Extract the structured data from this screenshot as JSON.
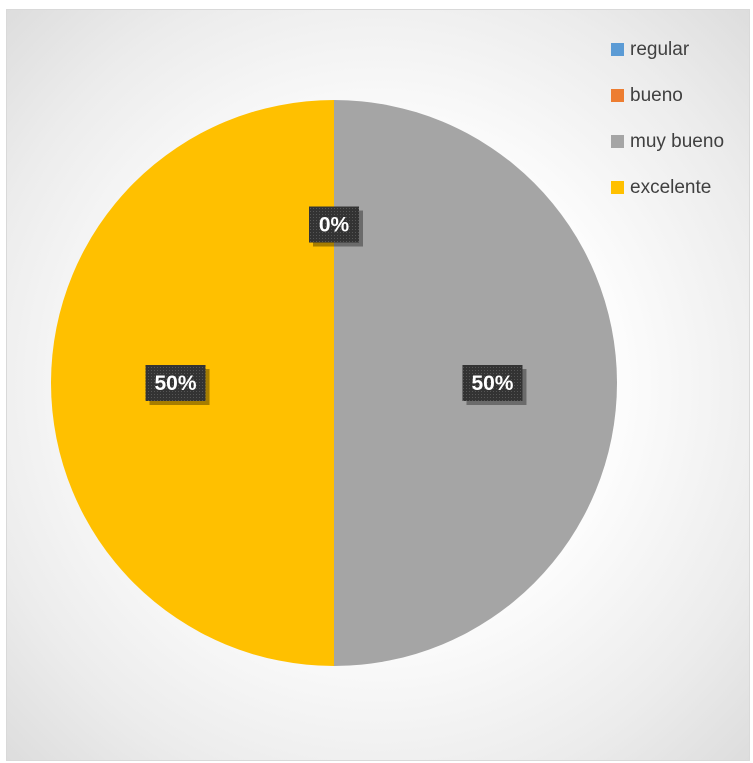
{
  "chart_data": {
    "type": "pie",
    "title": "",
    "categories": [
      "regular",
      "bueno",
      "muy bueno",
      "excelente"
    ],
    "values": [
      0,
      0,
      50,
      50
    ],
    "data_labels": [
      "0%",
      "0%",
      "50%",
      "50%"
    ],
    "colors": [
      "#5b9bd5",
      "#ed7d31",
      "#a5a5a5",
      "#ffc000"
    ],
    "legend_position": "top-right",
    "start_angle_deg": 0,
    "direction": "clockwise"
  }
}
